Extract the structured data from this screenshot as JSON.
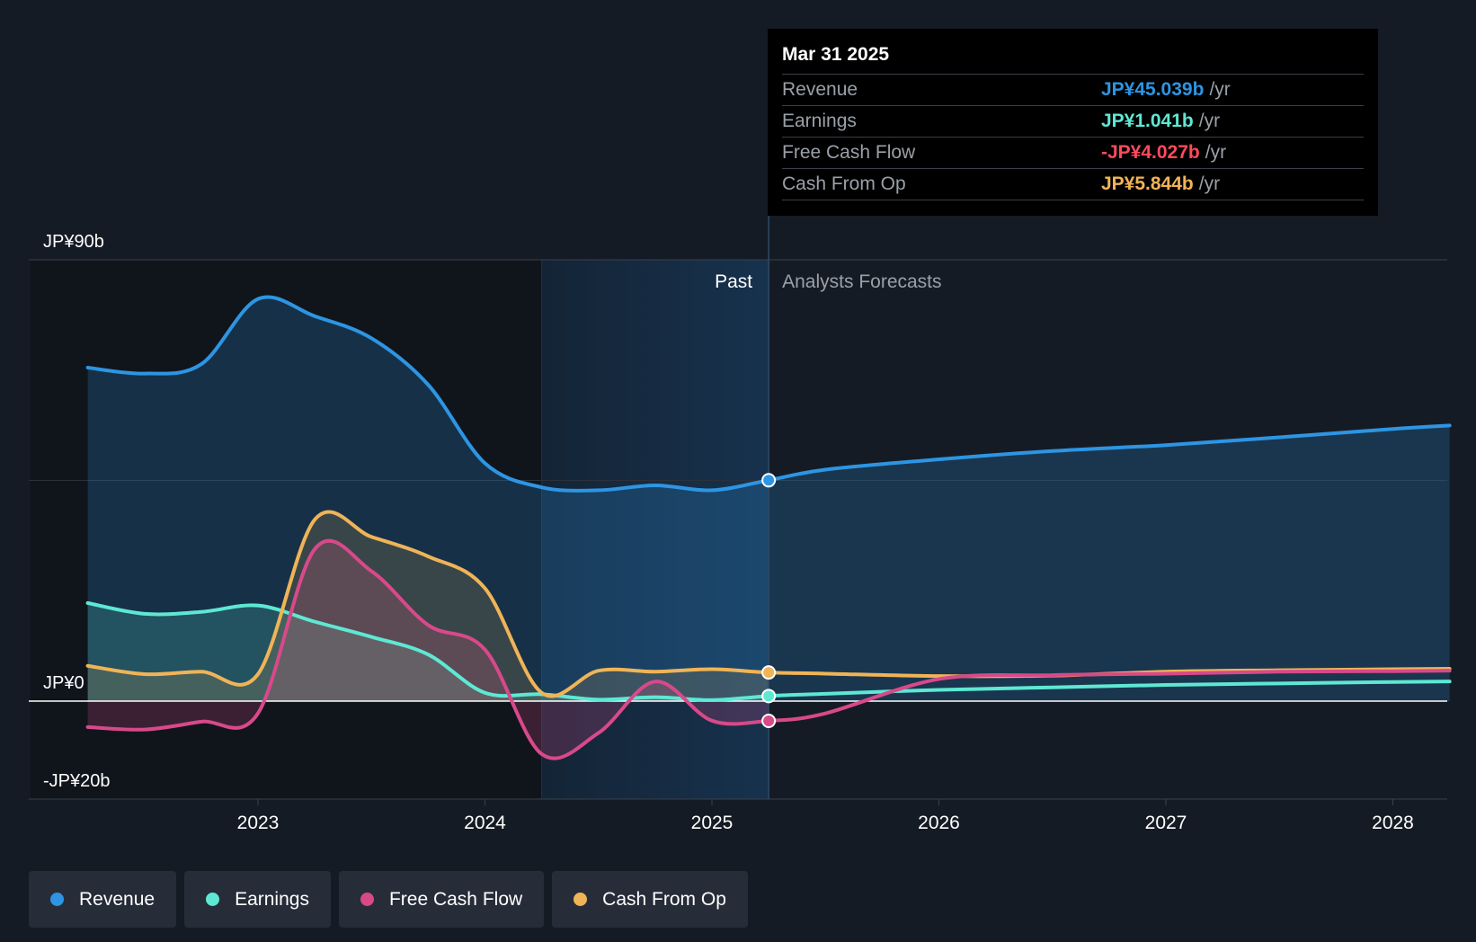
{
  "tooltip": {
    "date": "Mar 31 2025",
    "rows": [
      {
        "label": "Revenue",
        "value": "JP¥45.039b",
        "unit": "/yr",
        "color": "#2d95e3"
      },
      {
        "label": "Earnings",
        "value": "JP¥1.041b",
        "unit": "/yr",
        "color": "#5ee8d4"
      },
      {
        "label": "Free Cash Flow",
        "value": "-JP¥4.027b",
        "unit": "/yr",
        "color": "#ff4a5b"
      },
      {
        "label": "Cash From Op",
        "value": "JP¥5.844b",
        "unit": "/yr",
        "color": "#f0b457"
      }
    ]
  },
  "legend": [
    {
      "label": "Revenue",
      "color": "#2d95e3"
    },
    {
      "label": "Earnings",
      "color": "#5ee8d4"
    },
    {
      "label": "Free Cash Flow",
      "color": "#d8498a"
    },
    {
      "label": "Cash From Op",
      "color": "#f0b457"
    }
  ],
  "chart_data": {
    "type": "line",
    "title": "",
    "y_tick_labels": [
      {
        "label": "JP¥90b",
        "value": 90
      },
      {
        "label": "JP¥0",
        "value": 0
      },
      {
        "label": "-JP¥20b",
        "value": -20
      }
    ],
    "ylim": [
      -20,
      90
    ],
    "xlim": [
      2022.25,
      2028.25
    ],
    "x_tick_labels": [
      "2023",
      "2024",
      "2025",
      "2026",
      "2027",
      "2028"
    ],
    "x_tick_values": [
      2023,
      2024,
      2025,
      2026,
      2027,
      2028
    ],
    "past_label": "Past",
    "forecast_label": "Analysts Forecasts",
    "highlight_start": 2024.25,
    "divider_x": 2025.25,
    "series": [
      {
        "name": "Revenue",
        "color": "#2d95e3",
        "fill": true,
        "points": [
          [
            2022.25,
            68
          ],
          [
            2022.5,
            66.8
          ],
          [
            2022.75,
            68.7
          ],
          [
            2023.0,
            82
          ],
          [
            2023.25,
            78.5
          ],
          [
            2023.5,
            74
          ],
          [
            2023.75,
            64.5
          ],
          [
            2024.0,
            48.5
          ],
          [
            2024.25,
            43.6
          ],
          [
            2024.5,
            43
          ],
          [
            2024.75,
            44
          ],
          [
            2025.0,
            43
          ],
          [
            2025.25,
            45.039
          ],
          [
            2025.5,
            47.2
          ],
          [
            2026.0,
            49.3
          ],
          [
            2026.5,
            51
          ],
          [
            2027.0,
            52.2
          ],
          [
            2027.5,
            53.8
          ],
          [
            2028.0,
            55.5
          ],
          [
            2028.25,
            56.2
          ]
        ]
      },
      {
        "name": "Earnings",
        "color": "#5ee8d4",
        "fill": true,
        "points": [
          [
            2022.25,
            20
          ],
          [
            2022.5,
            17.8
          ],
          [
            2022.75,
            18.2
          ],
          [
            2023.0,
            19.5
          ],
          [
            2023.25,
            16.2
          ],
          [
            2023.5,
            13.1
          ],
          [
            2023.75,
            9.5
          ],
          [
            2024.0,
            1.7
          ],
          [
            2024.25,
            1.4
          ],
          [
            2024.5,
            0.3
          ],
          [
            2024.75,
            0.8
          ],
          [
            2025.0,
            0.2
          ],
          [
            2025.25,
            1.041
          ],
          [
            2025.5,
            1.5
          ],
          [
            2026.0,
            2.3
          ],
          [
            2026.5,
            2.8
          ],
          [
            2027.0,
            3.3
          ],
          [
            2027.5,
            3.6
          ],
          [
            2028.0,
            3.9
          ],
          [
            2028.25,
            4.0
          ]
        ]
      },
      {
        "name": "Free Cash Flow",
        "color": "#d8498a",
        "fill": true,
        "points": [
          [
            2022.25,
            -5.3
          ],
          [
            2022.5,
            -5.8
          ],
          [
            2022.75,
            -4.2
          ],
          [
            2023.0,
            -2.5
          ],
          [
            2023.25,
            31
          ],
          [
            2023.5,
            26.5
          ],
          [
            2023.75,
            15.5
          ],
          [
            2024.0,
            10.5
          ],
          [
            2024.25,
            -10.8
          ],
          [
            2024.5,
            -6.5
          ],
          [
            2024.75,
            4
          ],
          [
            2025.0,
            -4.0
          ],
          [
            2025.25,
            -4.027
          ],
          [
            2025.5,
            -2.5
          ],
          [
            2026.0,
            4.5
          ],
          [
            2026.5,
            5.3
          ],
          [
            2027.0,
            5.6
          ],
          [
            2027.5,
            6.0
          ],
          [
            2028.0,
            6.1
          ],
          [
            2028.25,
            6.2
          ]
        ]
      },
      {
        "name": "Cash From Op",
        "color": "#f0b457",
        "fill": true,
        "points": [
          [
            2022.25,
            7.2
          ],
          [
            2022.5,
            5.5
          ],
          [
            2022.75,
            6
          ],
          [
            2023.0,
            5.5
          ],
          [
            2023.25,
            37
          ],
          [
            2023.5,
            33.5
          ],
          [
            2023.75,
            29.5
          ],
          [
            2024.0,
            23
          ],
          [
            2024.25,
            1.7
          ],
          [
            2024.5,
            6.2
          ],
          [
            2024.75,
            6.0
          ],
          [
            2025.0,
            6.5
          ],
          [
            2025.25,
            5.844
          ],
          [
            2025.5,
            5.6
          ],
          [
            2026.0,
            5.1
          ],
          [
            2026.5,
            5.2
          ],
          [
            2027.0,
            6.0
          ],
          [
            2027.5,
            6.3
          ],
          [
            2028.0,
            6.5
          ],
          [
            2028.25,
            6.6
          ]
        ]
      }
    ]
  }
}
